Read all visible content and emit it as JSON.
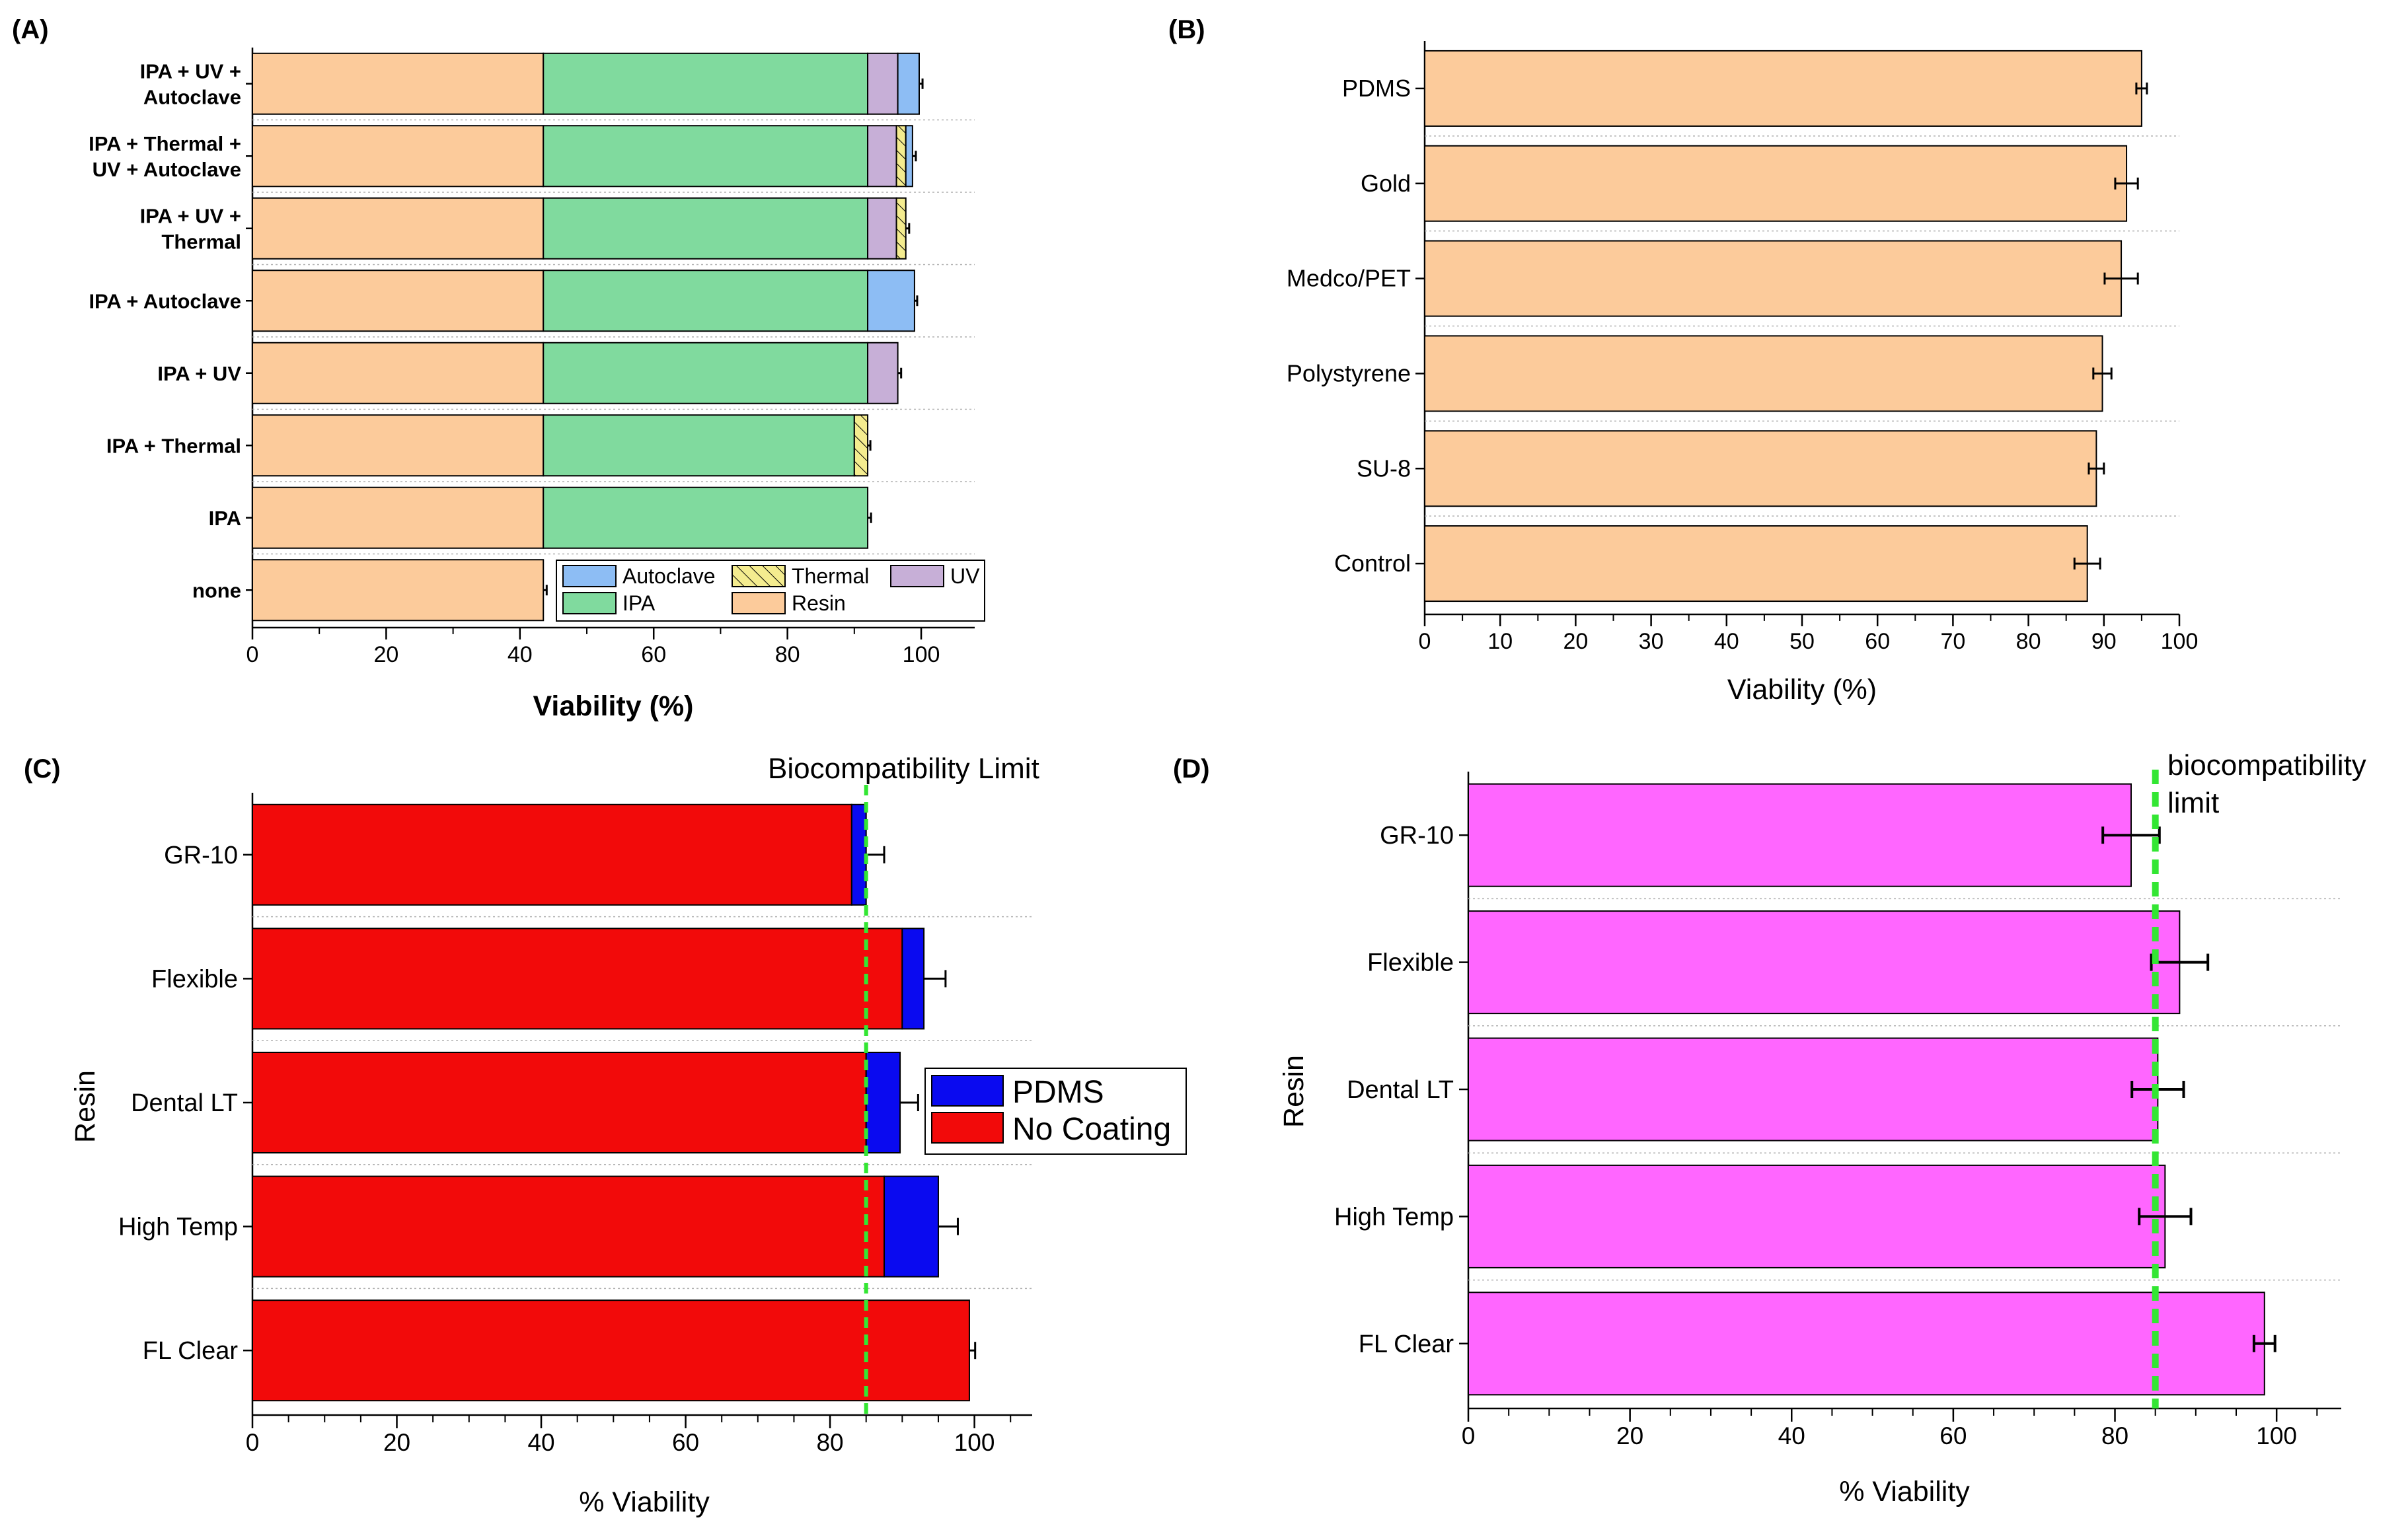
{
  "chart_data": [
    {
      "panel": "(A)",
      "type": "bar",
      "orientation": "horizontal",
      "stacked": true,
      "xlabel": "Viability (%)",
      "ylabel": "",
      "xlim": [
        0,
        108
      ],
      "xticks": [
        0,
        20,
        40,
        60,
        80,
        100
      ],
      "colors": {
        "Resin": "#FCCB9B",
        "IPA": "#80DA9E",
        "UV": "#C7AFD7",
        "Thermal": "#F4EC8F",
        "Autoclave": "#8DBDF4"
      },
      "legend": [
        {
          "name": "Autoclave",
          "color": "#8DBDF4"
        },
        {
          "name": "Thermal",
          "color": "#F4EC8F",
          "hatch": true
        },
        {
          "name": "UV",
          "color": "#C7AFD7"
        },
        {
          "name": "IPA",
          "color": "#80DA9E"
        },
        {
          "name": "Resin",
          "color": "#FCCB9B"
        }
      ],
      "legend_position": "bottom-right",
      "categories": [
        {
          "lines": [
            "IPA + UV +",
            "Autoclave"
          ],
          "segments": [
            [
              "Resin",
              43.5
            ],
            [
              "IPA",
              48.5
            ],
            [
              "UV",
              4.5
            ],
            [
              "Autoclave",
              3.2
            ]
          ],
          "error": 0.5
        },
        {
          "lines": [
            "IPA + Thermal +",
            "UV + Autoclave"
          ],
          "segments": [
            [
              "Resin",
              43.5
            ],
            [
              "IPA",
              48.5
            ],
            [
              "UV",
              4.3
            ],
            [
              "Thermal",
              1.4
            ],
            [
              "Autoclave",
              1.0
            ]
          ],
          "error": 0.5
        },
        {
          "lines": [
            "IPA + UV +",
            "Thermal"
          ],
          "segments": [
            [
              "Resin",
              43.5
            ],
            [
              "IPA",
              48.5
            ],
            [
              "UV",
              4.3
            ],
            [
              "Thermal",
              1.4
            ]
          ],
          "error": 0.5
        },
        {
          "lines": [
            "IPA + Autoclave"
          ],
          "segments": [
            [
              "Resin",
              43.5
            ],
            [
              "IPA",
              48.5
            ],
            [
              "Autoclave",
              7.0
            ]
          ],
          "error": 0.4
        },
        {
          "lines": [
            "IPA + UV"
          ],
          "segments": [
            [
              "Resin",
              43.5
            ],
            [
              "IPA",
              48.5
            ],
            [
              "UV",
              4.5
            ]
          ],
          "error": 0.5
        },
        {
          "lines": [
            "IPA + Thermal"
          ],
          "segments": [
            [
              "Resin",
              43.5
            ],
            [
              "IPA",
              46.5
            ],
            [
              "Thermal",
              2.0
            ]
          ],
          "error": 0.4
        },
        {
          "lines": [
            "IPA"
          ],
          "segments": [
            [
              "Resin",
              43.5
            ],
            [
              "IPA",
              48.5
            ]
          ],
          "error": 0.5
        },
        {
          "lines": [
            "none"
          ],
          "segments": [
            [
              "Resin",
              43.5
            ]
          ],
          "error": 0.5
        }
      ]
    },
    {
      "panel": "(B)",
      "type": "bar",
      "orientation": "horizontal",
      "xlabel": "Viability (%)",
      "ylabel": "",
      "xlim": [
        0,
        100
      ],
      "xticks": [
        0,
        10,
        20,
        30,
        40,
        50,
        60,
        70,
        80,
        90,
        100
      ],
      "color": "#FCCB9B",
      "categories": [
        "PDMS",
        "Gold",
        "Medco/PET",
        "Polystyrene",
        "SU-8",
        "Control"
      ],
      "values": [
        95,
        93,
        92.3,
        89.8,
        89,
        87.8
      ],
      "errors": [
        0.7,
        1.5,
        2.2,
        1.2,
        1.0,
        1.7
      ]
    },
    {
      "panel": "(C)",
      "type": "bar",
      "orientation": "horizontal",
      "stacked": true,
      "xlabel": "% Viability",
      "ylabel": "Resin",
      "xlim": [
        0,
        108
      ],
      "xticks": [
        0,
        20,
        40,
        60,
        80,
        100
      ],
      "annotation": "Biocompatibility Limit",
      "limit": 85,
      "limit_color": "#33E633",
      "legend": [
        {
          "name": "PDMS",
          "color": "#0A0AF0"
        },
        {
          "name": "No Coating",
          "color": "#F20A0A"
        }
      ],
      "legend_position": "middle-right",
      "categories": [
        "GR-10",
        "Flexible",
        "Dental LT",
        "High Temp",
        "FL Clear"
      ],
      "series": [
        {
          "name": "No Coating",
          "color": "#F20A0A",
          "values": [
            83,
            90,
            85,
            87.5,
            99.3
          ]
        },
        {
          "name": "PDMS",
          "color": "#0A0AF0",
          "values": [
            2,
            3,
            4.7,
            7.5,
            0
          ]
        }
      ],
      "totals": [
        85,
        93,
        89.7,
        95,
        99.3
      ],
      "errors": [
        2.5,
        3,
        2.5,
        2.7,
        0.8
      ]
    },
    {
      "panel": "(D)",
      "type": "bar",
      "orientation": "horizontal",
      "xlabel": "% Viability",
      "ylabel": "Resin",
      "xlim": [
        0,
        108
      ],
      "xticks": [
        0,
        20,
        40,
        60,
        80,
        100
      ],
      "annotation": [
        "biocompatibility",
        "limit"
      ],
      "limit": 85,
      "limit_color": "#33E633",
      "color": "#FF66FF",
      "categories": [
        "GR-10",
        "Flexible",
        "Dental LT",
        "High Temp",
        "FL Clear"
      ],
      "values": [
        82,
        88,
        85.3,
        86.2,
        98.5
      ],
      "errors": [
        3.5,
        3.5,
        3.2,
        3.2,
        1.3
      ]
    }
  ]
}
